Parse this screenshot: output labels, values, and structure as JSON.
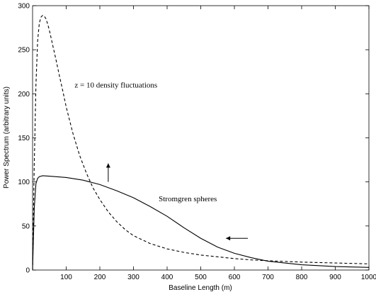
{
  "chart_data": {
    "type": "line",
    "title": "",
    "xlabel": "Baseline Length (m)",
    "ylabel": "Power Spectrum (arbitrary units)",
    "xlim": [
      0,
      1000
    ],
    "ylim": [
      0,
      300
    ],
    "xticks": [
      100,
      200,
      300,
      400,
      500,
      600,
      700,
      800,
      900,
      1000
    ],
    "yticks": [
      0,
      50,
      100,
      150,
      200,
      250,
      300
    ],
    "grid": false,
    "legend": "none",
    "series": [
      {
        "style": "dashed",
        "color": "#000000",
        "x": [
          0,
          5,
          10,
          15,
          20,
          25,
          30,
          35,
          40,
          45,
          50,
          60,
          70,
          80,
          90,
          100,
          120,
          140,
          160,
          180,
          200,
          225,
          250,
          275,
          300,
          350,
          400,
          450,
          500,
          550,
          600,
          650,
          700,
          800,
          900,
          1000
        ],
        "y": [
          0,
          120,
          210,
          260,
          280,
          287,
          289,
          288,
          285,
          279,
          272,
          255,
          238,
          220,
          203,
          185,
          155,
          130,
          110,
          93,
          80,
          66,
          55,
          46,
          39,
          30,
          24,
          20,
          17,
          15,
          13,
          11.5,
          10.5,
          9,
          8,
          7
        ]
      },
      {
        "style": "solid",
        "color": "#000000",
        "x": [
          0,
          5,
          10,
          15,
          20,
          30,
          50,
          100,
          150,
          200,
          250,
          300,
          350,
          400,
          450,
          500,
          550,
          600,
          650,
          700,
          750,
          800,
          850,
          900,
          950,
          1000
        ],
        "y": [
          0,
          70,
          98,
          104,
          106,
          107,
          106.5,
          105,
          102,
          97,
          90,
          82,
          72,
          61,
          48,
          36,
          26,
          19,
          14,
          10,
          8,
          6,
          5,
          4,
          3.5,
          3
        ]
      }
    ],
    "annotations": [
      {
        "text": "z = 10 density fluctuations",
        "x": 125,
        "y": 207
      },
      {
        "text": "Stromgren spheres",
        "x": 375,
        "y": 78
      }
    ],
    "arrows": [
      {
        "direction": "up",
        "x": 225,
        "y_from": 100,
        "y_to": 121
      },
      {
        "direction": "left",
        "x_from": 640,
        "x_to": 575,
        "y": 36
      }
    ]
  }
}
